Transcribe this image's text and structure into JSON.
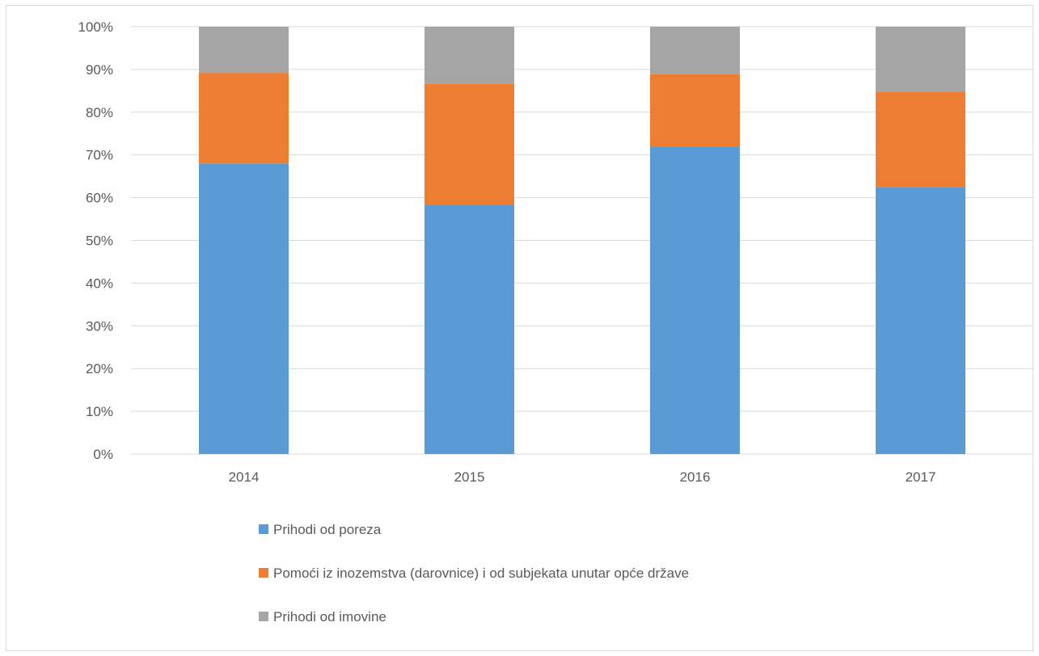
{
  "chart_data": {
    "type": "bar",
    "stacked": true,
    "normalized": "percent",
    "title": "",
    "xlabel": "",
    "ylabel": "",
    "categories": [
      "2014",
      "2015",
      "2016",
      "2017"
    ],
    "ylim": [
      0,
      100
    ],
    "y_ticks": [
      "0%",
      "10%",
      "20%",
      "30%",
      "40%",
      "50%",
      "60%",
      "70%",
      "80%",
      "90%",
      "100%"
    ],
    "grid": true,
    "legend_position": "bottom",
    "series": [
      {
        "name": "Prihodi od poreza",
        "color": "#5b9bd5",
        "values": [
          68,
          58.4,
          72,
          62.5
        ]
      },
      {
        "name": "Pomoći iz inozemstva (darovnice) i od subjekata unutar opće države",
        "color": "#ed7d31",
        "values": [
          21.2,
          28.2,
          16.9,
          22.2
        ]
      },
      {
        "name": "Prihodi od imovine",
        "color": "#a5a5a5",
        "values": [
          10.8,
          13.4,
          11.1,
          15.3
        ]
      }
    ]
  }
}
